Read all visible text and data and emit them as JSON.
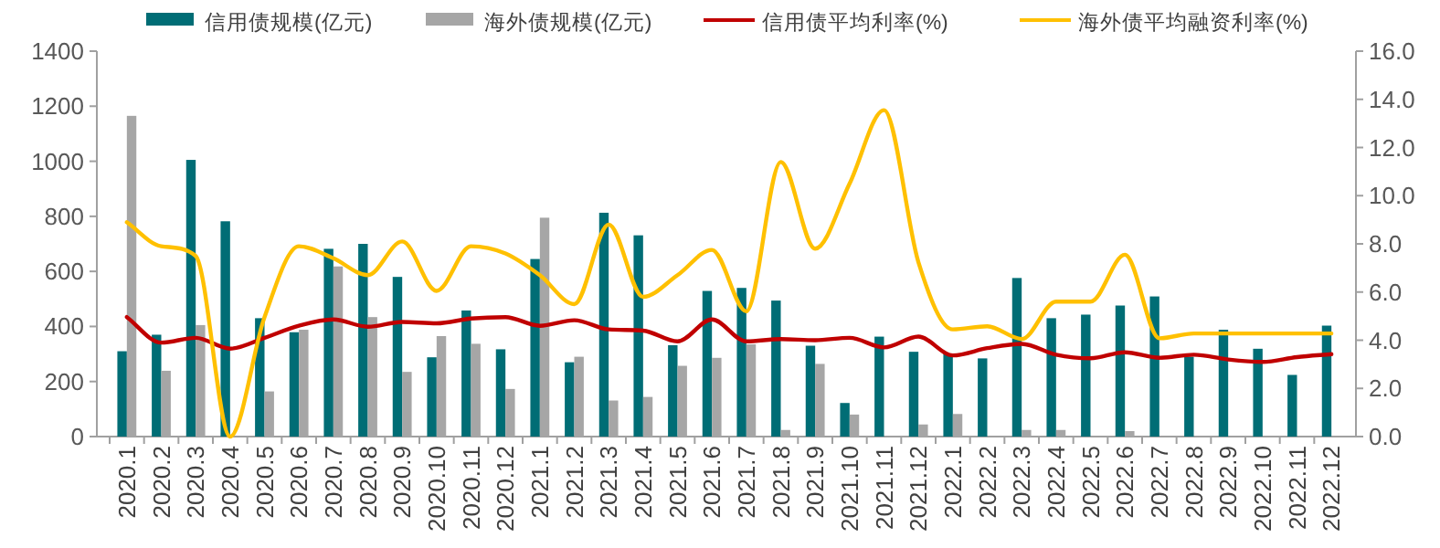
{
  "chart_data": {
    "type": "bar",
    "legend": "top",
    "grid": false,
    "marker": "none",
    "line_style": "solid",
    "categories": [
      "2020.1",
      "2020.2",
      "2020.3",
      "2020.4",
      "2020.5",
      "2020.6",
      "2020.7",
      "2020.8",
      "2020.9",
      "2020.10",
      "2020.11",
      "2020.12",
      "2021.1",
      "2021.2",
      "2021.3",
      "2021.4",
      "2021.5",
      "2021.6",
      "2021.7",
      "2021.8",
      "2021.9",
      "2021.10",
      "2021.11",
      "2021.12",
      "2022.1",
      "2022.2",
      "2022.3",
      "2022.4",
      "2022.5",
      "2022.6",
      "2022.7",
      "2022.8",
      "2022.9",
      "2022.10",
      "2022.11",
      "2022.12"
    ],
    "ylim": [
      0,
      1400
    ],
    "yticks": [
      0,
      200,
      400,
      600,
      800,
      1000,
      1200,
      1400
    ],
    "y2lim": [
      0,
      16
    ],
    "y2ticks": [
      {
        "value": 0,
        "label": "0.0"
      },
      {
        "value": 2,
        "label": "2.0"
      },
      {
        "value": 4,
        "label": "4.0"
      },
      {
        "value": 6,
        "label": "6.0"
      },
      {
        "value": 8,
        "label": "8.0"
      },
      {
        "value": 10,
        "label": "10.0"
      },
      {
        "value": 12,
        "label": "12.0"
      },
      {
        "value": 14,
        "label": "14.0"
      },
      {
        "value": 16,
        "label": "16.0"
      }
    ],
    "series": [
      {
        "name": "信用债规模(亿元)",
        "color": "#006d75",
        "values": [
          310,
          370,
          1005,
          782,
          430,
          379,
          682,
          700,
          580,
          288,
          458,
          317,
          645,
          270,
          813,
          731,
          332,
          529,
          540,
          494,
          330,
          122,
          363,
          308,
          301,
          284,
          576,
          430,
          443,
          476,
          509,
          290,
          388,
          319,
          224,
          403
        ]
      },
      {
        "name": "海外债规模(亿元)",
        "color": "#a6a6a6",
        "values": [
          1165,
          239,
          405,
          0,
          164,
          388,
          618,
          434,
          235,
          365,
          337,
          173,
          795,
          290,
          131,
          144,
          257,
          286,
          335,
          24,
          264,
          80,
          null,
          44,
          82,
          0,
          24,
          24,
          0,
          20,
          null,
          0,
          0,
          0,
          0,
          0
        ]
      },
      {
        "name": "信用债平均利率(%)",
        "type": "line",
        "axis": "y2",
        "color": "#c00000",
        "values": [
          4.96,
          3.9,
          4.1,
          3.65,
          4.1,
          4.6,
          4.86,
          4.56,
          4.76,
          4.7,
          4.9,
          4.96,
          4.6,
          4.83,
          4.45,
          4.4,
          3.95,
          4.86,
          3.95,
          4.05,
          4.0,
          4.1,
          3.7,
          4.15,
          3.37,
          3.67,
          3.85,
          3.4,
          3.25,
          3.5,
          3.27,
          3.4,
          3.2,
          3.1,
          3.3,
          3.42
        ]
      },
      {
        "name": "海外债平均融资利率(%)",
        "type": "line",
        "axis": "y2",
        "color": "#ffc000",
        "values": [
          8.9,
          7.9,
          7.5,
          0,
          4.96,
          7.9,
          7.4,
          6.7,
          8.1,
          6.05,
          7.9,
          7.6,
          6.7,
          5.5,
          8.8,
          5.8,
          6.7,
          7.75,
          5.2,
          11.4,
          7.8,
          10.5,
          13.55,
          7.24,
          4.45,
          4.58,
          4.05,
          5.6,
          5.6,
          7.55,
          4.08,
          4.28,
          4.28,
          4.28,
          4.28,
          4.28
        ]
      }
    ]
  }
}
